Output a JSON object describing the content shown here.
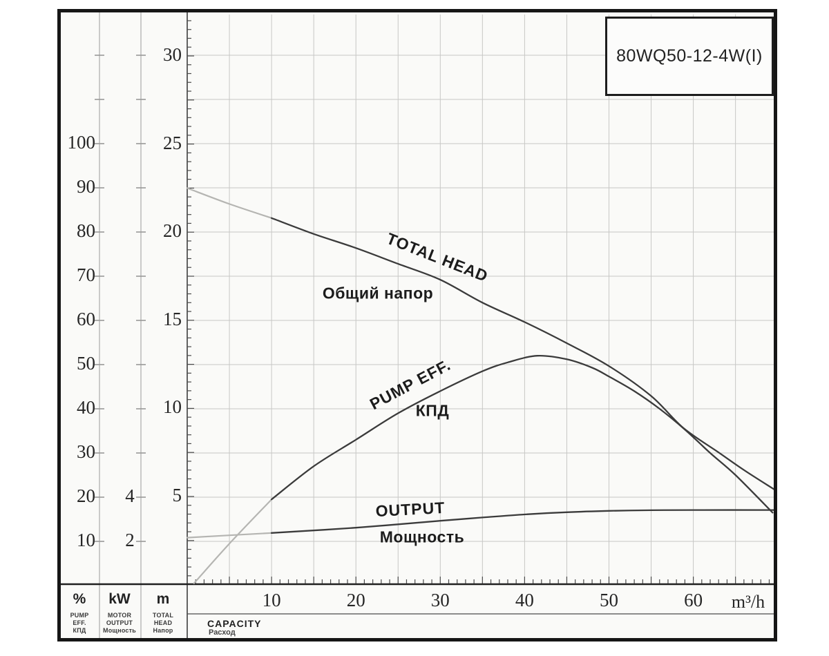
{
  "figure": {
    "model": "80WQ50-12-4W(I)",
    "colors": {
      "curve": "#3b3b3b",
      "curve_faded": "#b5b5b2",
      "grid": "#c7c7c5",
      "border": "#161616",
      "tick": "#4a4a4a"
    }
  },
  "curve_labels": {
    "head_en": "TOTAL HEAD",
    "head_ru": "Общий напор",
    "eff_en": "PUMP EFF.",
    "eff_ru": "КПД",
    "output_en": "OUTPUT",
    "output_ru": "Мощность"
  },
  "left_axes": {
    "efficiency": {
      "unit": "%",
      "ticks": [
        100,
        90,
        80,
        70,
        60,
        50,
        40,
        30,
        20,
        10
      ],
      "legend_lines": [
        "PUMP",
        "EFF.",
        "КПД"
      ]
    },
    "power": {
      "unit": "kW",
      "ticks": [
        4,
        2
      ],
      "legend_lines": [
        "MOTOR",
        "OUTPUT",
        "Мощность"
      ]
    },
    "head": {
      "unit": "m",
      "ticks": [
        30,
        25,
        20,
        15,
        10,
        5
      ],
      "legend_lines": [
        "TOTAL",
        "HEAD",
        "Напор"
      ]
    }
  },
  "x_axis": {
    "ticks": [
      10,
      20,
      30,
      40,
      50,
      60
    ],
    "unit": "m³/h",
    "label_en": "CAPACITY",
    "label_ru": "Расход"
  },
  "chart_data": {
    "type": "line",
    "title": "80WQ50-12-4W(I)",
    "xlabel": "CAPACITY, m³/h",
    "x_range": [
      0,
      70
    ],
    "grid": true,
    "legend_position": "labels-on-curves",
    "axes_shown": {
      "head_m": [
        5,
        30
      ],
      "efficiency_pct": [
        10,
        100
      ],
      "power_kW": [
        2,
        4
      ]
    },
    "series": [
      {
        "name": "TOTAL HEAD (Общий напор)",
        "y_axis": "m",
        "points": [
          [
            0,
            22.5
          ],
          [
            5,
            21.6
          ],
          [
            10,
            20.8
          ],
          [
            15,
            19.9
          ],
          [
            20,
            19.1
          ],
          [
            25,
            18.2
          ],
          [
            30,
            17.3
          ],
          [
            35,
            16.0
          ],
          [
            40,
            14.9
          ],
          [
            45,
            13.7
          ],
          [
            50,
            12.4
          ],
          [
            55,
            10.7
          ],
          [
            58.8,
            8.9
          ],
          [
            63,
            7.5
          ],
          [
            66,
            6.5
          ],
          [
            69.6,
            5.4
          ]
        ]
      },
      {
        "name": "PUMP EFF. (КПД)",
        "y_axis": "%",
        "points": [
          [
            0.8,
            0.5
          ],
          [
            5,
            9.5
          ],
          [
            10,
            19.5
          ],
          [
            15,
            27
          ],
          [
            20,
            33
          ],
          [
            25,
            39
          ],
          [
            30,
            44
          ],
          [
            35,
            48.5
          ],
          [
            38,
            50.5
          ],
          [
            41.5,
            52
          ],
          [
            45,
            51.2
          ],
          [
            48,
            49.3
          ],
          [
            50,
            47.3
          ],
          [
            53,
            44
          ],
          [
            56,
            40
          ],
          [
            59,
            35.3
          ],
          [
            62,
            30
          ],
          [
            65,
            25
          ],
          [
            69.4,
            16.5
          ]
        ]
      },
      {
        "name": "OUTPUT (Мощность)",
        "y_axis": "kW",
        "points": [
          [
            0,
            2.17
          ],
          [
            10,
            2.38
          ],
          [
            20,
            2.62
          ],
          [
            30,
            2.93
          ],
          [
            35,
            3.08
          ],
          [
            40,
            3.22
          ],
          [
            45,
            3.32
          ],
          [
            50,
            3.38
          ],
          [
            55,
            3.41
          ],
          [
            60,
            3.42
          ],
          [
            69.6,
            3.42
          ]
        ]
      }
    ]
  }
}
